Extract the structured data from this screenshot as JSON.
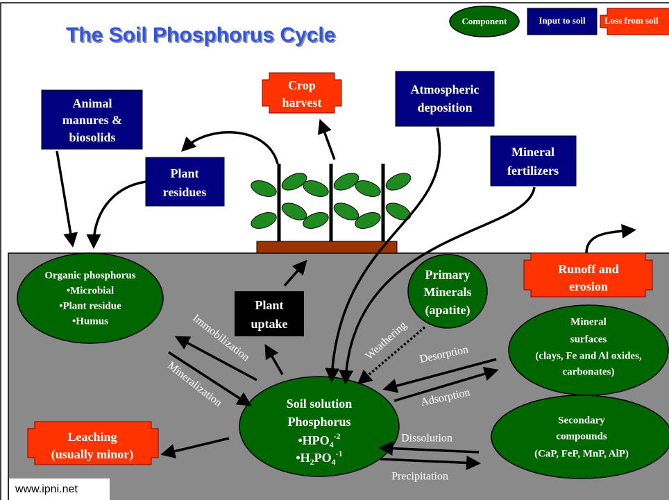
{
  "title": "The Soil Phosphorus Cycle",
  "legend": [
    "Component",
    "Input to soil",
    "Loss from soil"
  ],
  "inputs": {
    "animal_manures": [
      "Animal",
      "manures &",
      "biosolids"
    ],
    "plant_residues": [
      "Plant",
      "residues"
    ],
    "atmospheric_deposition": [
      "Atmospheric",
      "deposition"
    ],
    "mineral_fertilizers": [
      "Mineral",
      "fertilizers"
    ]
  },
  "losses": {
    "crop_harvest": [
      "Crop",
      "harvest"
    ],
    "runoff": [
      "Runoff and",
      "erosion"
    ],
    "leaching": [
      "Leaching",
      "(usually minor)"
    ]
  },
  "components": {
    "organic": [
      "Organic phosphorus",
      "•Microbial",
      "•Plant residue",
      "•Humus"
    ],
    "primary_minerals": [
      "Primary",
      "Minerals",
      "(apatite)"
    ],
    "mineral_surfaces": [
      "Mineral",
      "surfaces",
      "(clays, Fe and Al oxides,",
      "carbonates)"
    ],
    "secondary": [
      "Secondary",
      "compounds",
      "(CaP, FeP, MnP, AlP)"
    ],
    "soil_solution": {
      "lines": [
        "Soil solution",
        "Phosphorus"
      ],
      "formulas": [
        [
          "•HPO",
          "4",
          "-2"
        ],
        [
          "•H",
          "2",
          "PO",
          "4",
          "-1"
        ]
      ]
    }
  },
  "plant_uptake": [
    "Plant",
    "uptake"
  ],
  "processes": {
    "immobilization": "Immobilization",
    "mineralization": "Mineralization",
    "weathering": "Weathering",
    "desorption": "Desorption",
    "adsorption": "Adsorption",
    "dissolution": "Dissolution",
    "precipitation": "Precipitation"
  },
  "footer": "www.ipni.net"
}
